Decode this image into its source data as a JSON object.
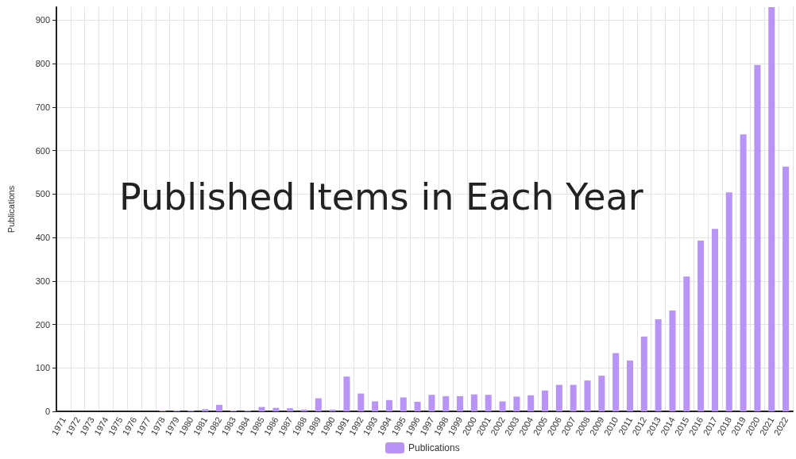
{
  "chart_data": {
    "type": "bar",
    "title": "Published Items in Each Year",
    "ylabel": "Publications",
    "categories": [
      "1971",
      "1972",
      "1973",
      "1974",
      "1975",
      "1976",
      "1977",
      "1978",
      "1979",
      "1980",
      "1981",
      "1982",
      "1983",
      "1984",
      "1985",
      "1986",
      "1987",
      "1988",
      "1989",
      "1990",
      "1991",
      "1992",
      "1993",
      "1994",
      "1995",
      "1996",
      "1997",
      "1998",
      "1999",
      "2000",
      "2001",
      "2002",
      "2003",
      "2004",
      "2005",
      "2006",
      "2007",
      "2008",
      "2009",
      "2010",
      "2011",
      "2012",
      "2013",
      "2014",
      "2015",
      "2016",
      "2017",
      "2018",
      "2019",
      "2020",
      "2021",
      "2022"
    ],
    "series": [
      {
        "name": "Publications",
        "color": "#b794f6",
        "values": [
          0,
          0,
          0,
          0,
          0,
          0,
          0,
          2,
          2,
          2,
          5,
          15,
          2,
          2,
          10,
          8,
          7,
          4,
          30,
          4,
          80,
          41,
          23,
          26,
          32,
          22,
          38,
          35,
          35,
          39,
          38,
          23,
          34,
          37,
          48,
          61,
          61,
          71,
          82,
          134,
          117,
          172,
          212,
          232,
          310,
          393,
          420,
          504,
          637,
          797,
          930,
          563
        ]
      }
    ],
    "ylim": [
      0,
      930
    ],
    "yticks": [
      0,
      100,
      200,
      300,
      400,
      500,
      600,
      700,
      800,
      900
    ],
    "grid": true,
    "legend": "bottom"
  }
}
